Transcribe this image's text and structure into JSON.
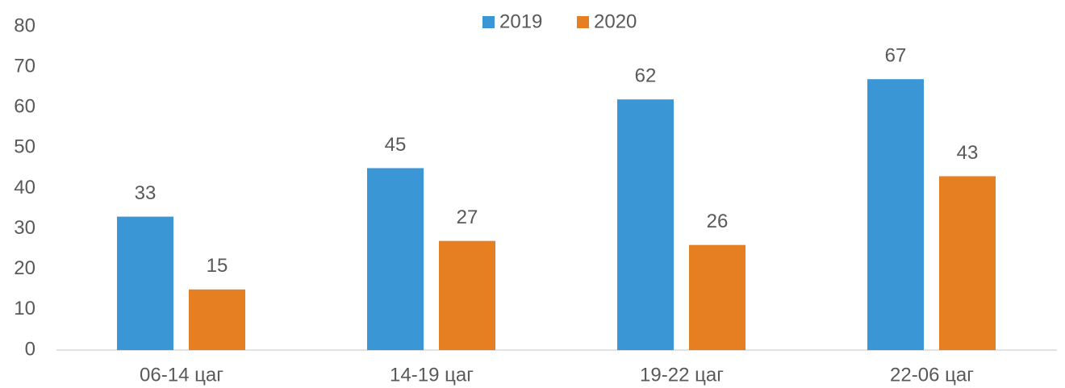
{
  "chart_data": {
    "type": "bar",
    "categories": [
      "06-14 цаг",
      "14-19 цаг",
      "19-22 цаг",
      "22-06 цаг"
    ],
    "series": [
      {
        "name": "2019",
        "color": "#3b96d6",
        "values": [
          33,
          45,
          62,
          67
        ]
      },
      {
        "name": "2020",
        "color": "#e67e22",
        "values": [
          15,
          27,
          26,
          43
        ]
      }
    ],
    "ylim": [
      0,
      80
    ],
    "yticks": [
      0,
      10,
      20,
      30,
      40,
      50,
      60,
      70,
      80
    ],
    "grid": false,
    "legend": "top"
  }
}
